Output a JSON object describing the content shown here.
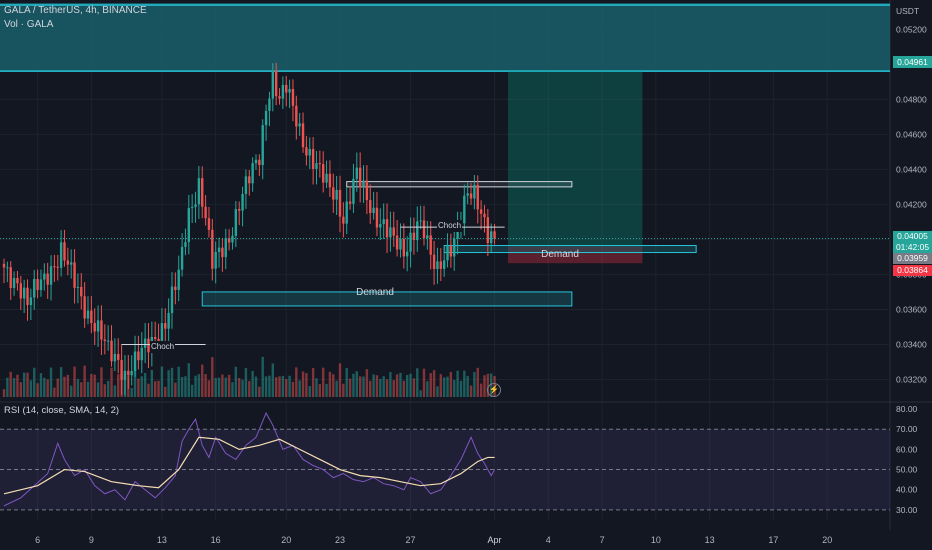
{
  "header": {
    "symbol_title": "GALA / TetherUS, 4h, BINANCE",
    "volume_label": "Vol · GALA",
    "rsi_label": "RSI (14, close, SMA, 14, 2)",
    "currency": "USDT"
  },
  "price_tags": {
    "target": "0.04961",
    "last": "0.04005",
    "countdown": "01:42:05",
    "entry": "0.03959",
    "stop": "0.03864"
  },
  "annotations": {
    "demand_lower": "Demand",
    "demand_upper": "Demand",
    "choch_left": "Choch",
    "choch_right": "Choch"
  },
  "colors": {
    "background": "#131722",
    "up": "#26a69a",
    "down": "#ef5350",
    "zone_fill": "#1a5f6a",
    "rsi": "#7e57c2",
    "rsi_ma": "#f5deb3"
  },
  "chart_data": [
    {
      "type": "candlestick",
      "title": "GALA / TetherUS, 4h, BINANCE",
      "unit": "USDT",
      "ylim": [
        0.031,
        0.0535
      ],
      "y_ticks": [
        0.032,
        0.034,
        0.036,
        0.038,
        0.04,
        0.042,
        0.044,
        0.046,
        0.048,
        0.05,
        0.052
      ],
      "x_tick_labels": [
        "6",
        "9",
        "13",
        "16",
        "20",
        "23",
        "27",
        "Apr",
        "4",
        "7",
        "10",
        "13",
        "17",
        "20"
      ],
      "close_path": [
        [
          0,
          0.0384
        ],
        [
          4,
          0.0376
        ],
        [
          7,
          0.0362
        ],
        [
          10,
          0.0374
        ],
        [
          13,
          0.0382
        ],
        [
          16,
          0.0388
        ],
        [
          17,
          0.0392
        ],
        [
          19,
          0.0384
        ],
        [
          22,
          0.0372
        ],
        [
          25,
          0.0358
        ],
        [
          28,
          0.0347
        ],
        [
          31,
          0.0336
        ],
        [
          34,
          0.0332
        ],
        [
          36,
          0.0323
        ],
        [
          39,
          0.0329
        ],
        [
          42,
          0.0338
        ],
        [
          45,
          0.0345
        ],
        [
          48,
          0.0352
        ],
        [
          50,
          0.0366
        ],
        [
          52,
          0.0379
        ],
        [
          55,
          0.0416
        ],
        [
          58,
          0.0432
        ],
        [
          60,
          0.0412
        ],
        [
          62,
          0.0385
        ],
        [
          64,
          0.0392
        ],
        [
          67,
          0.0402
        ],
        [
          70,
          0.042
        ],
        [
          73,
          0.0434
        ],
        [
          76,
          0.0448
        ],
        [
          78,
          0.0478
        ],
        [
          80,
          0.0493
        ],
        [
          82,
          0.0478
        ],
        [
          84,
          0.0486
        ],
        [
          87,
          0.047
        ],
        [
          90,
          0.0452
        ],
        [
          93,
          0.044
        ],
        [
          96,
          0.0432
        ],
        [
          99,
          0.0426
        ],
        [
          101,
          0.0412
        ],
        [
          103,
          0.0424
        ],
        [
          105,
          0.0436
        ],
        [
          107,
          0.0428
        ],
        [
          110,
          0.0416
        ],
        [
          113,
          0.0408
        ],
        [
          116,
          0.0398
        ],
        [
          119,
          0.0393
        ],
        [
          121,
          0.0402
        ],
        [
          123,
          0.0411
        ],
        [
          125,
          0.0404
        ],
        [
          127,
          0.0388
        ],
        [
          129,
          0.0382
        ],
        [
          131,
          0.0392
        ],
        [
          134,
          0.04
        ],
        [
          136,
          0.0412
        ],
        [
          138,
          0.0424
        ],
        [
          140,
          0.0426
        ],
        [
          142,
          0.0418
        ],
        [
          144,
          0.0405
        ],
        [
          146,
          0.0401
        ]
      ],
      "zones": [
        {
          "label": "Demand",
          "start_index": 59,
          "end_index": 169,
          "low": 0.0362,
          "high": 0.037
        },
        {
          "label": "Demand",
          "start_index": 131,
          "end_index": 206,
          "low": 0.03925,
          "high": 0.03965
        },
        {
          "label": "",
          "start_index": 102,
          "end_index": 169,
          "low": 0.043,
          "high": 0.0433
        }
      ],
      "choch": [
        {
          "label": "Choch",
          "price": 0.034,
          "start_index": 35,
          "end_index": 60
        },
        {
          "label": "Choch",
          "price": 0.0407,
          "start_index": 118,
          "end_index": 149
        }
      ],
      "long_position": {
        "start_index": 150,
        "end_index": 190,
        "entry": 0.03959,
        "target": 0.04961,
        "stop": 0.03864
      },
      "last_price": 0.04005
    },
    {
      "type": "line",
      "title": "RSI (14, close, SMA, 14, 2)",
      "ylim": [
        25,
        82
      ],
      "y_ticks": [
        30,
        40,
        50,
        60,
        70,
        80
      ],
      "bands": [
        30,
        50,
        70
      ],
      "series": [
        {
          "name": "RSI",
          "points": [
            [
              0,
              32
            ],
            [
              5,
              36
            ],
            [
              9,
              42
            ],
            [
              13,
              48
            ],
            [
              16,
              63
            ],
            [
              18,
              55
            ],
            [
              21,
              47
            ],
            [
              24,
              50
            ],
            [
              27,
              42
            ],
            [
              30,
              38
            ],
            [
              33,
              40
            ],
            [
              36,
              35
            ],
            [
              39,
              44
            ],
            [
              42,
              40
            ],
            [
              45,
              36
            ],
            [
              48,
              41
            ],
            [
              51,
              47
            ],
            [
              53,
              64
            ],
            [
              55,
              70
            ],
            [
              57,
              75
            ],
            [
              59,
              62
            ],
            [
              61,
              56
            ],
            [
              63,
              66
            ],
            [
              66,
              58
            ],
            [
              69,
              55
            ],
            [
              72,
              62
            ],
            [
              75,
              66
            ],
            [
              78,
              78
            ],
            [
              80,
              72
            ],
            [
              83,
              60
            ],
            [
              86,
              62
            ],
            [
              89,
              55
            ],
            [
              92,
              52
            ],
            [
              95,
              50
            ],
            [
              98,
              46
            ],
            [
              101,
              48
            ],
            [
              104,
              45
            ],
            [
              107,
              44
            ],
            [
              110,
              46
            ],
            [
              113,
              43
            ],
            [
              116,
              42
            ],
            [
              119,
              40
            ],
            [
              121,
              46
            ],
            [
              124,
              44
            ],
            [
              127,
              38
            ],
            [
              130,
              40
            ],
            [
              133,
              47
            ],
            [
              136,
              55
            ],
            [
              139,
              66
            ],
            [
              141,
              58
            ],
            [
              143,
              53
            ],
            [
              145,
              47
            ],
            [
              146,
              50
            ]
          ]
        },
        {
          "name": "SMA",
          "points": [
            [
              0,
              38
            ],
            [
              10,
              42
            ],
            [
              18,
              50
            ],
            [
              24,
              49
            ],
            [
              32,
              44
            ],
            [
              40,
              42
            ],
            [
              46,
              41
            ],
            [
              52,
              50
            ],
            [
              58,
              66
            ],
            [
              64,
              65
            ],
            [
              70,
              60
            ],
            [
              76,
              62
            ],
            [
              82,
              65
            ],
            [
              88,
              60
            ],
            [
              94,
              55
            ],
            [
              100,
              50
            ],
            [
              106,
              47
            ],
            [
              112,
              46
            ],
            [
              118,
              44
            ],
            [
              124,
              42
            ],
            [
              130,
              43
            ],
            [
              136,
              48
            ],
            [
              141,
              54
            ],
            [
              144,
              56
            ],
            [
              146,
              56
            ]
          ]
        }
      ]
    }
  ]
}
